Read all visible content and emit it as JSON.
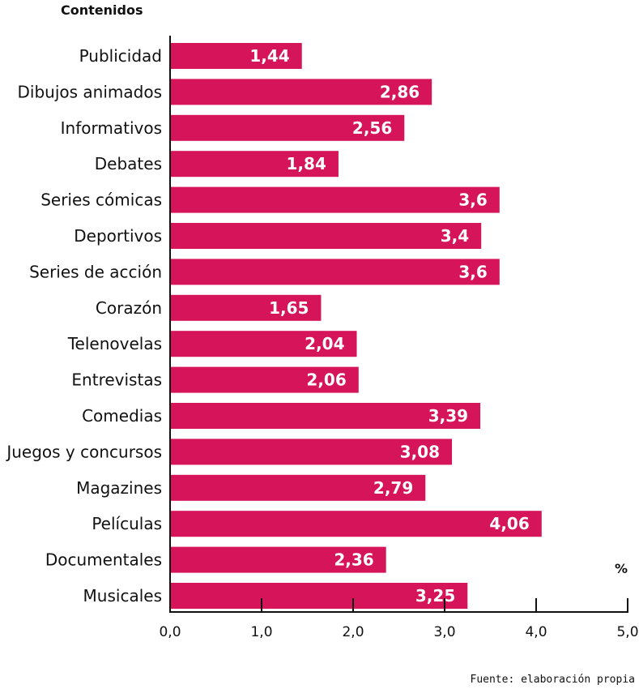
{
  "chart_data": {
    "type": "bar",
    "orientation": "horizontal",
    "title": "Contenidos",
    "xlabel": "%",
    "ylabel": "",
    "xlim": [
      0,
      5
    ],
    "x_ticks": [
      "0,0",
      "1,0",
      "2,0",
      "3,0",
      "4,0",
      "5,0"
    ],
    "categories": [
      "Publicidad",
      "Dibujos animados",
      "Informativos",
      "Debates",
      "Series cómicas",
      "Deportivos",
      "Series de acción",
      "Corazón",
      "Telenovelas",
      "Entrevistas",
      "Comedias",
      "Juegos y concursos",
      "Magazines",
      "Películas",
      "Documentales",
      "Musicales"
    ],
    "values": [
      1.44,
      2.86,
      2.56,
      1.84,
      3.6,
      3.4,
      3.6,
      1.65,
      2.04,
      2.06,
      3.39,
      3.08,
      2.79,
      4.06,
      2.36,
      3.25
    ],
    "value_labels": [
      "1,44",
      "2,86",
      "2,56",
      "1,84",
      "3,6",
      "3,4",
      "3,6",
      "1,65",
      "2,04",
      "2,06",
      "3,39",
      "3,08",
      "2,79",
      "4,06",
      "2,36",
      "3,25"
    ],
    "bar_color": "#d6145a",
    "grid": false,
    "source": "Fuente: elaboración propia"
  }
}
